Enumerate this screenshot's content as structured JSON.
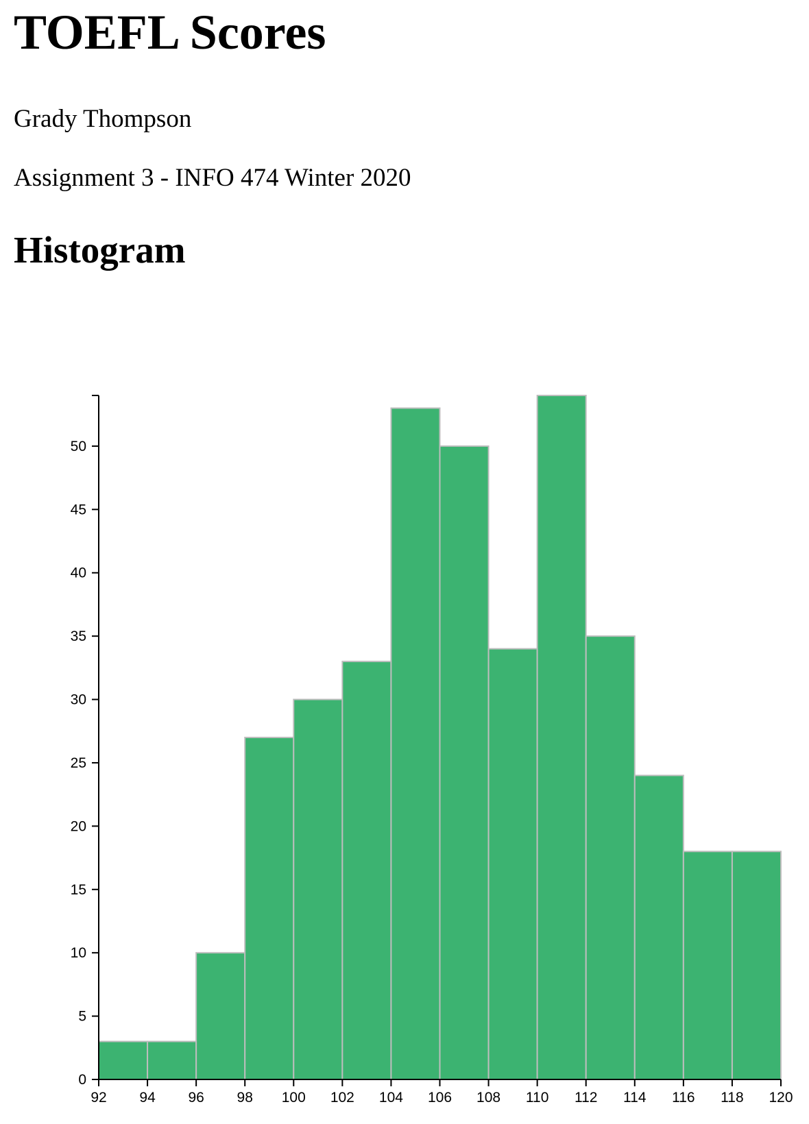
{
  "page": {
    "title": "TOEFL Scores",
    "author": "Grady Thompson",
    "assignment": "Assignment 3 - INFO 474 Winter 2020",
    "section_title": "Histogram"
  },
  "colors": {
    "bar_fill": "#3cb371",
    "bar_stroke": "#bdbdbd"
  },
  "chart_data": {
    "type": "bar",
    "title": "",
    "xlabel": "",
    "ylabel": "",
    "bins": [
      {
        "x0": 92,
        "x1": 94,
        "count": 3
      },
      {
        "x0": 94,
        "x1": 96,
        "count": 3
      },
      {
        "x0": 96,
        "x1": 98,
        "count": 10
      },
      {
        "x0": 98,
        "x1": 100,
        "count": 27
      },
      {
        "x0": 100,
        "x1": 102,
        "count": 30
      },
      {
        "x0": 102,
        "x1": 104,
        "count": 33
      },
      {
        "x0": 104,
        "x1": 106,
        "count": 53
      },
      {
        "x0": 106,
        "x1": 108,
        "count": 50
      },
      {
        "x0": 108,
        "x1": 110,
        "count": 34
      },
      {
        "x0": 110,
        "x1": 112,
        "count": 54
      },
      {
        "x0": 112,
        "x1": 114,
        "count": 35
      },
      {
        "x0": 114,
        "x1": 116,
        "count": 24
      },
      {
        "x0": 116,
        "x1": 118,
        "count": 18
      },
      {
        "x0": 118,
        "x1": 120,
        "count": 18
      }
    ],
    "xlim": [
      92,
      120
    ],
    "ylim": [
      0,
      54
    ],
    "x_ticks": [
      92,
      94,
      96,
      98,
      100,
      102,
      104,
      106,
      108,
      110,
      112,
      114,
      116,
      118,
      120
    ],
    "y_ticks": [
      0,
      5,
      10,
      15,
      20,
      25,
      30,
      35,
      40,
      45,
      50
    ],
    "grid": false,
    "legend": "none"
  }
}
